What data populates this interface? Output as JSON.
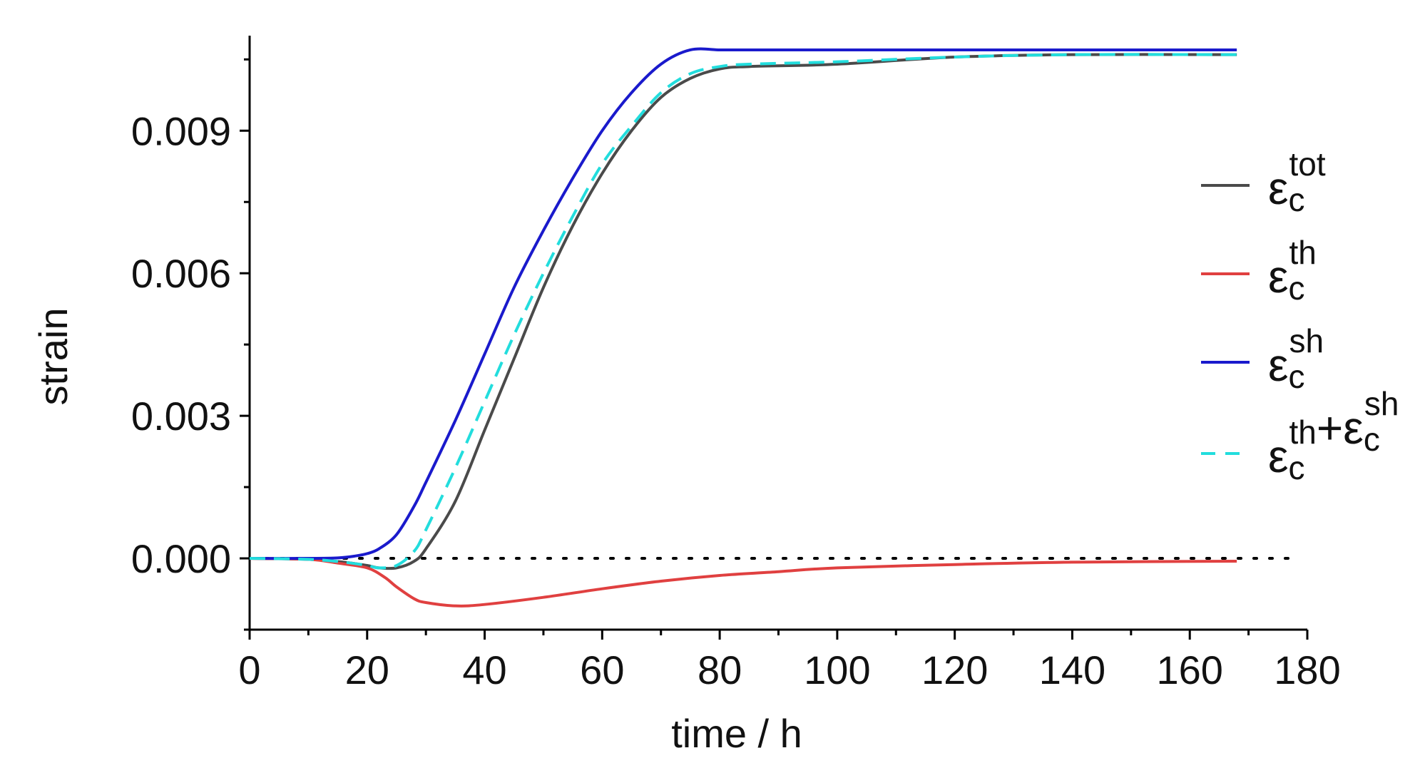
{
  "chart_data": {
    "type": "line",
    "xlabel": "time / h",
    "ylabel": "strain",
    "xlim": [
      0,
      180
    ],
    "ylim": [
      -0.0015,
      0.011
    ],
    "x_ticks": [
      "0",
      "20",
      "40",
      "60",
      "80",
      "100",
      "120",
      "140",
      "160",
      "180"
    ],
    "y_ticks": [
      "0.000",
      "0.003",
      "0.006",
      "0.009"
    ],
    "grid": false,
    "legend_position": "right",
    "reference_line": {
      "y": 0.0,
      "style": "dotted",
      "color": "#000000"
    },
    "series": [
      {
        "name": "ε_c^tot",
        "legend": {
          "base": "ε",
          "sub": "c",
          "sup": "tot"
        },
        "color": "#4a4a4a",
        "dash": "solid",
        "x": [
          0,
          10,
          16,
          20,
          22,
          25,
          28,
          30,
          35,
          40,
          45,
          50,
          55,
          60,
          65,
          70,
          75,
          80,
          85,
          100,
          120,
          140,
          168
        ],
        "y": [
          0,
          -2e-05,
          -8e-05,
          -0.00015,
          -0.0002,
          -0.0002,
          -6e-05,
          0.0002,
          0.0012,
          0.0027,
          0.0042,
          0.0057,
          0.007,
          0.0081,
          0.009,
          0.0097,
          0.0101,
          0.0103,
          0.01035,
          0.0104,
          0.01055,
          0.0106,
          0.0106
        ]
      },
      {
        "name": "ε_c^th",
        "legend": {
          "base": "ε",
          "sub": "c",
          "sup": "th"
        },
        "color": "#e04040",
        "dash": "solid",
        "x": [
          0,
          10,
          15,
          20,
          23,
          25,
          28,
          30,
          35,
          40,
          50,
          60,
          70,
          80,
          90,
          100,
          120,
          140,
          168
        ],
        "y": [
          0,
          -2e-05,
          -0.0001,
          -0.0002,
          -0.0004,
          -0.0006,
          -0.00085,
          -0.00093,
          -0.001,
          -0.00097,
          -0.00082,
          -0.00064,
          -0.00048,
          -0.00036,
          -0.00028,
          -0.0002,
          -0.00013,
          -8e-05,
          -6e-05
        ]
      },
      {
        "name": "ε_c^sh",
        "legend": {
          "base": "ε",
          "sub": "c",
          "sup": "sh"
        },
        "color": "#1a1acc",
        "dash": "solid",
        "x": [
          0,
          10,
          15,
          18,
          20,
          22,
          25,
          28,
          30,
          35,
          40,
          45,
          50,
          55,
          60,
          65,
          70,
          75,
          80,
          83,
          90,
          100,
          120,
          140,
          168
        ],
        "y": [
          0,
          0,
          1e-05,
          5e-05,
          0.0001,
          0.0002,
          0.0005,
          0.0011,
          0.0016,
          0.0029,
          0.0043,
          0.0057,
          0.0069,
          0.008,
          0.009,
          0.0098,
          0.0104,
          0.0107,
          0.0107,
          0.0107,
          0.0107,
          0.0107,
          0.0107,
          0.0107,
          0.0107
        ]
      },
      {
        "name": "ε_c^th+ε_c^sh",
        "legend": {
          "parts": [
            {
              "base": "ε",
              "sub": "c",
              "sup": "th"
            },
            {
              "base": "ε",
              "sub": "c",
              "sup": "sh"
            }
          ],
          "joiner": "+"
        },
        "color": "#22dddd",
        "dash": "dashed",
        "x": [
          0,
          10,
          16,
          20,
          22,
          25,
          28,
          30,
          35,
          40,
          45,
          50,
          55,
          60,
          65,
          70,
          75,
          80,
          85,
          100,
          120,
          140,
          168
        ],
        "y": [
          0,
          -2e-05,
          -8e-05,
          -0.00015,
          -0.0002,
          -0.00015,
          0.00015,
          0.0006,
          0.0019,
          0.0033,
          0.0047,
          0.006,
          0.0072,
          0.0083,
          0.0091,
          0.0098,
          0.0102,
          0.01035,
          0.0104,
          0.01045,
          0.01055,
          0.0106,
          0.0106
        ]
      }
    ]
  }
}
